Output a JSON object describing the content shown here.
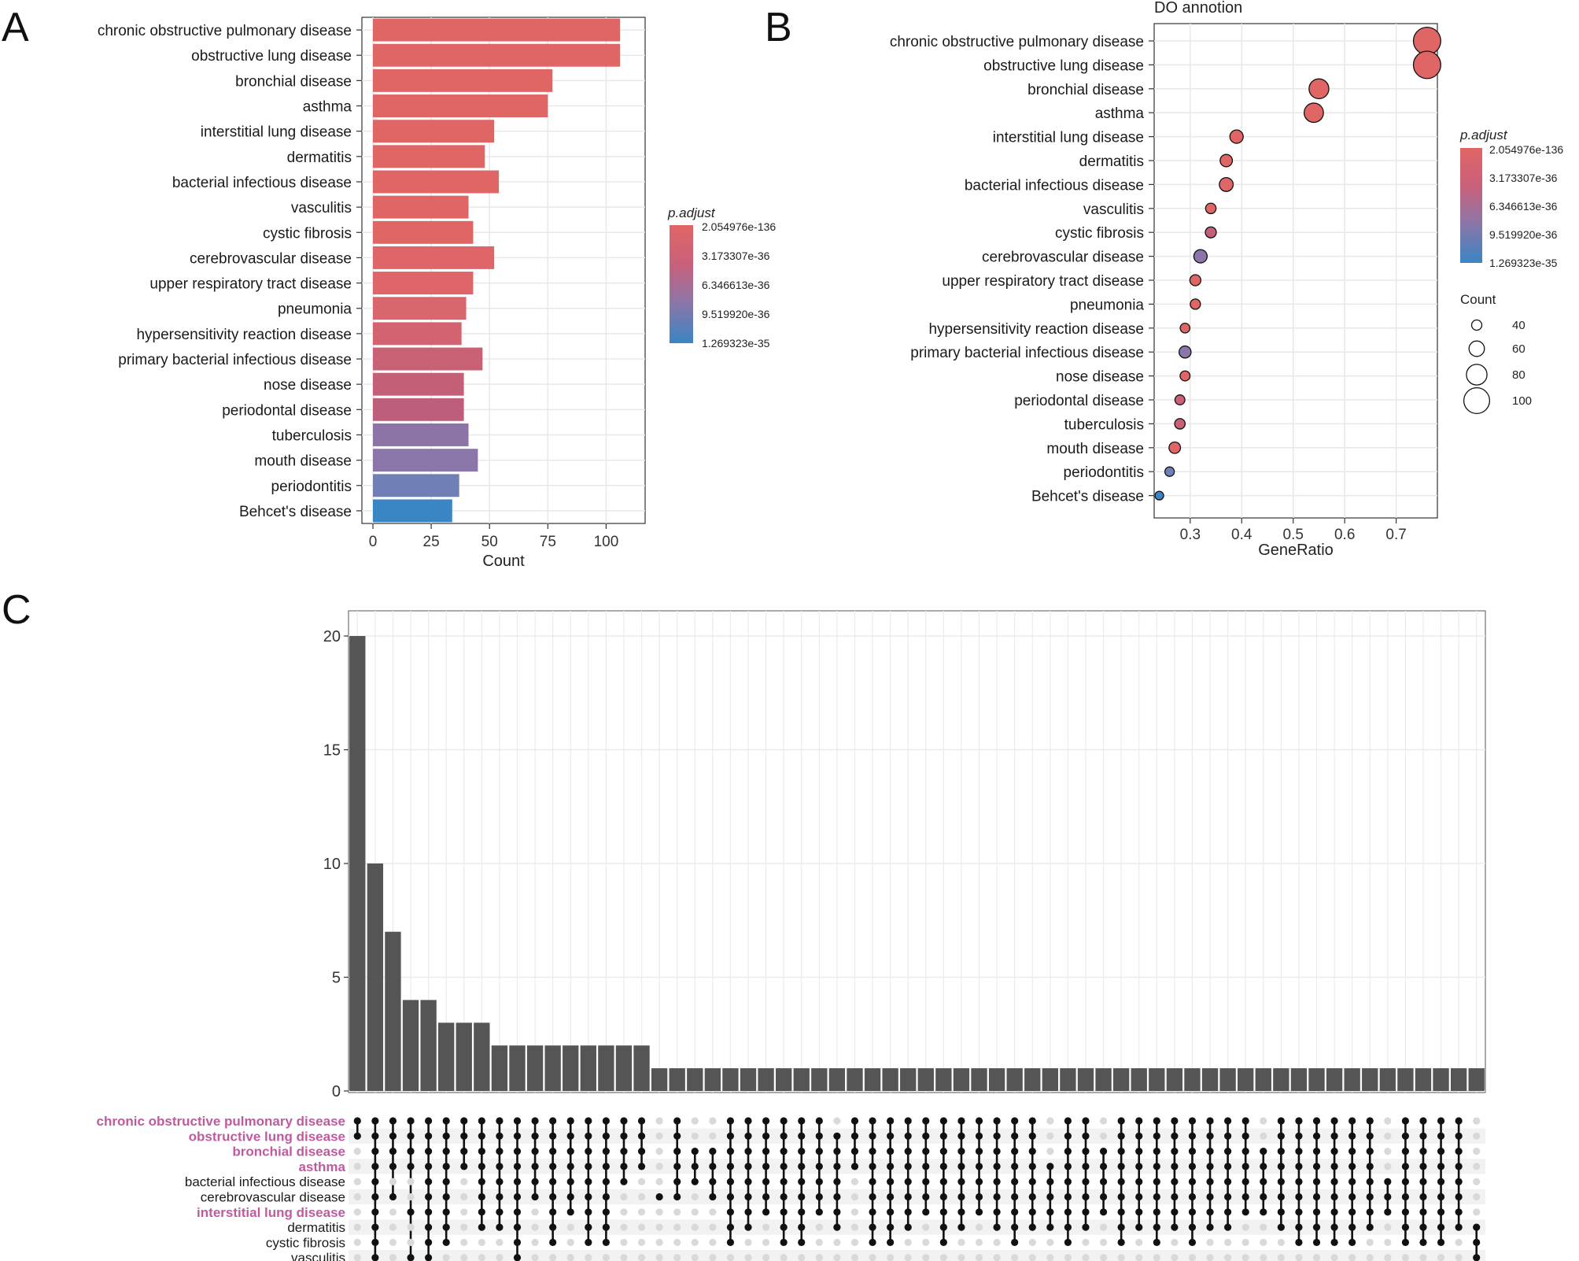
{
  "panel_labels": [
    "A",
    "B",
    "C"
  ],
  "legend": {
    "color_title": "p.adjust",
    "color_ticks": [
      "2.054976e-136",
      "3.173307e-36",
      "6.346613e-36",
      "9.519920e-36",
      "1.269323e-35"
    ],
    "size_title": "Count",
    "size_ticks": [
      40,
      60,
      80,
      100
    ],
    "gradient": [
      "#e06666",
      "#c9607a",
      "#8a76a8",
      "#3a85c4"
    ]
  },
  "chart_data": [
    {
      "panel": "A",
      "type": "bar",
      "orientation": "horizontal",
      "title": "",
      "xlabel": "Count",
      "ylabel": "",
      "xlim": [
        0,
        112
      ],
      "xticks": [
        0,
        25,
        50,
        75,
        100
      ],
      "categories": [
        "chronic obstructive pulmonary disease",
        "obstructive lung disease",
        "bronchial disease",
        "asthma",
        "interstitial lung disease",
        "dermatitis",
        "bacterial infectious disease",
        "vasculitis",
        "cystic fibrosis",
        "cerebrovascular disease",
        "upper respiratory tract disease",
        "pneumonia",
        "hypersensitivity reaction disease",
        "primary bacterial infectious disease",
        "nose disease",
        "periodontal disease",
        "tuberculosis",
        "mouth disease",
        "periodontitis",
        "Behcet's disease"
      ],
      "values": [
        106,
        106,
        77,
        75,
        52,
        48,
        54,
        41,
        43,
        52,
        43,
        40,
        38,
        47,
        39,
        39,
        41,
        45,
        37,
        34
      ],
      "colors": [
        "#e06666",
        "#e06666",
        "#e06666",
        "#e06666",
        "#e06666",
        "#e06666",
        "#e06666",
        "#e06666",
        "#e06666",
        "#df6668",
        "#de666a",
        "#d9666c",
        "#d3646f",
        "#c96174",
        "#c35f77",
        "#bd5e7b",
        "#8c75a6",
        "#8a76a8",
        "#7080b6",
        "#3a85c4"
      ],
      "grid": true
    },
    {
      "panel": "B",
      "type": "scatter",
      "title": "DO annotion",
      "xlabel": "GeneRatio",
      "ylabel": "",
      "xlim": [
        0.23,
        0.78
      ],
      "xticks": [
        0.3,
        0.4,
        0.5,
        0.6,
        0.7
      ],
      "categories": [
        "chronic obstructive pulmonary disease",
        "obstructive lung disease",
        "bronchial disease",
        "asthma",
        "interstitial lung disease",
        "dermatitis",
        "bacterial infectious disease",
        "vasculitis",
        "cystic fibrosis",
        "cerebrovascular disease",
        "upper respiratory tract disease",
        "pneumonia",
        "hypersensitivity reaction disease",
        "primary bacterial infectious disease",
        "nose disease",
        "periodontal disease",
        "tuberculosis",
        "mouth disease",
        "periodontitis",
        "Behcet's disease"
      ],
      "x": [
        0.76,
        0.76,
        0.55,
        0.54,
        0.39,
        0.37,
        0.37,
        0.34,
        0.34,
        0.32,
        0.31,
        0.31,
        0.29,
        0.29,
        0.29,
        0.28,
        0.28,
        0.27,
        0.26,
        0.24
      ],
      "sizes": [
        106,
        106,
        77,
        75,
        52,
        48,
        54,
        41,
        43,
        52,
        43,
        40,
        38,
        47,
        39,
        39,
        41,
        45,
        37,
        34
      ],
      "colors": [
        "#e06666",
        "#e06666",
        "#e06666",
        "#e06666",
        "#e06666",
        "#e06666",
        "#e06666",
        "#e06666",
        "#c35f77",
        "#8a76a8",
        "#e06666",
        "#e06666",
        "#e06666",
        "#8a76a8",
        "#e06666",
        "#c96174",
        "#c96174",
        "#e06666",
        "#7080b6",
        "#3a85c4"
      ],
      "grid": true
    },
    {
      "panel": "C",
      "type": "bar",
      "subtype": "upset",
      "title": "",
      "xlabel": "",
      "ylabel": "",
      "ylim": [
        0,
        21
      ],
      "yticks": [
        0,
        5,
        10,
        15,
        20
      ],
      "sets": [
        "chronic obstructive pulmonary disease",
        "obstructive lung disease",
        "bronchial disease",
        "asthma",
        "bacterial infectious disease",
        "cerebrovascular disease",
        "interstitial lung disease",
        "dermatitis",
        "cystic fibrosis",
        "vasculitis"
      ],
      "highlighted_sets": [
        "chronic obstructive pulmonary disease",
        "obstructive lung disease",
        "bronchial disease",
        "asthma",
        "interstitial lung disease"
      ],
      "highlight_color": "#c05aa0",
      "values": [
        20,
        10,
        7,
        4,
        4,
        3,
        3,
        3,
        2,
        2,
        2,
        2,
        2,
        2,
        2,
        2,
        2,
        1,
        1,
        1,
        1,
        1,
        1,
        1,
        1,
        1,
        1,
        1,
        1,
        1,
        1,
        1,
        1,
        1,
        1,
        1,
        1,
        1,
        1,
        1,
        1,
        1,
        1,
        1,
        1,
        1,
        1,
        1,
        1,
        1,
        1,
        1,
        1,
        1,
        1,
        1,
        1,
        1,
        1,
        1,
        1,
        1,
        1,
        1
      ],
      "memberships": [
        [
          0,
          1
        ],
        [
          0,
          1,
          2,
          3,
          4,
          5,
          6,
          7,
          8,
          9
        ],
        [
          0,
          1,
          2,
          3,
          5
        ],
        [
          0,
          1,
          2,
          3,
          6,
          9
        ],
        [
          0,
          1,
          2,
          3,
          4,
          5,
          6,
          7,
          8,
          9
        ],
        [
          0,
          1,
          2,
          3,
          4,
          5,
          6,
          7,
          8
        ],
        [
          0,
          1,
          2,
          3
        ],
        [
          0,
          1,
          2,
          3,
          4,
          5,
          6,
          7
        ],
        [
          0,
          1,
          2,
          3,
          4,
          5,
          6,
          7
        ],
        [
          0,
          1,
          2,
          3,
          4,
          5,
          6,
          7,
          8,
          9
        ],
        [
          0,
          1,
          2,
          3,
          4,
          5
        ],
        [
          0,
          1,
          2,
          3,
          4,
          5,
          6,
          7,
          8
        ],
        [
          0,
          1,
          2,
          3,
          4,
          5,
          6
        ],
        [
          0,
          1,
          2,
          3,
          4,
          5,
          6,
          7,
          8
        ],
        [
          0,
          1,
          2,
          3,
          4,
          5,
          6,
          7,
          8
        ],
        [
          0,
          1,
          2,
          3,
          4
        ],
        [
          0,
          1,
          2,
          3
        ],
        [
          5
        ],
        [
          0,
          1,
          2,
          3,
          4,
          5
        ],
        [
          2,
          3,
          4
        ],
        [
          2,
          3,
          4,
          5
        ],
        [
          0,
          1,
          2,
          3,
          4,
          5,
          6,
          7,
          8
        ],
        [
          0,
          1,
          2,
          3,
          4,
          5,
          6,
          7
        ],
        [
          0,
          1,
          2,
          3,
          4,
          5,
          6
        ],
        [
          0,
          1,
          2,
          3,
          4,
          5,
          6,
          7,
          8
        ],
        [
          0,
          1,
          2,
          3,
          4,
          5,
          6,
          7,
          8
        ],
        [
          0,
          1,
          2,
          3,
          4,
          5,
          6
        ],
        [
          1,
          2,
          3,
          4,
          5,
          6,
          7
        ],
        [
          0,
          1,
          2,
          3
        ],
        [
          0,
          1,
          2,
          3,
          4,
          5,
          6,
          7,
          8
        ],
        [
          0,
          1,
          2,
          3,
          4,
          5,
          6,
          7,
          8
        ],
        [
          0,
          1,
          2,
          3,
          4,
          5,
          6,
          7
        ],
        [
          0,
          1,
          2,
          3,
          4,
          5,
          6
        ],
        [
          0,
          1,
          2,
          3,
          4,
          5,
          6,
          7,
          8
        ],
        [
          0,
          1,
          2,
          3,
          4,
          5,
          6,
          7
        ],
        [
          0,
          1,
          2,
          3,
          4,
          5,
          6
        ],
        [
          0,
          1,
          2,
          3,
          4,
          5,
          6,
          7
        ],
        [
          0,
          1,
          2,
          3,
          4,
          5,
          6,
          7,
          8
        ],
        [
          0,
          1,
          2,
          3,
          4,
          5,
          6,
          7
        ],
        [
          3,
          4,
          5,
          6,
          7
        ],
        [
          0,
          1,
          2,
          3,
          4,
          5,
          6,
          7,
          8
        ],
        [
          0,
          1,
          2,
          3,
          4,
          5,
          6,
          7
        ],
        [
          2,
          3,
          4,
          5,
          6
        ],
        [
          0,
          1,
          2,
          3,
          4,
          5,
          6,
          7,
          8
        ],
        [
          0,
          1,
          2,
          3,
          4,
          5,
          6,
          7
        ],
        [
          0,
          1,
          2,
          3,
          4,
          5,
          6,
          7,
          8
        ],
        [
          0,
          1,
          2,
          3,
          4,
          5,
          6,
          7
        ],
        [
          0,
          1,
          2,
          3,
          4,
          5,
          6,
          7,
          8
        ],
        [
          0,
          1,
          2,
          3,
          4,
          5,
          6,
          7
        ],
        [
          0,
          1,
          2,
          3,
          4,
          5,
          6,
          7
        ],
        [
          0,
          1,
          2,
          3,
          4,
          5,
          6
        ],
        [
          2,
          3,
          4,
          5,
          6
        ],
        [
          0,
          1,
          2,
          3,
          4,
          5,
          6,
          7
        ],
        [
          0,
          1,
          2,
          3,
          4,
          5,
          6,
          7,
          8
        ],
        [
          0,
          1,
          2,
          3,
          4,
          5,
          6,
          7,
          8
        ],
        [
          0,
          1,
          2,
          3,
          4,
          5,
          6,
          7,
          8
        ],
        [
          0,
          1,
          2,
          3,
          4,
          5,
          6,
          7,
          8
        ],
        [
          0,
          1,
          2,
          3,
          4,
          5,
          6,
          7
        ],
        [
          4,
          5,
          6
        ],
        [
          0,
          1,
          2,
          3,
          4,
          5,
          6,
          7,
          8
        ],
        [
          0,
          1,
          2,
          3,
          4,
          5,
          6,
          7,
          8
        ],
        [
          0,
          1,
          2,
          3,
          4,
          5,
          6,
          7,
          8
        ],
        [
          0,
          1,
          2,
          3,
          4,
          5,
          6,
          7
        ],
        [
          7,
          8,
          9
        ]
      ]
    }
  ]
}
